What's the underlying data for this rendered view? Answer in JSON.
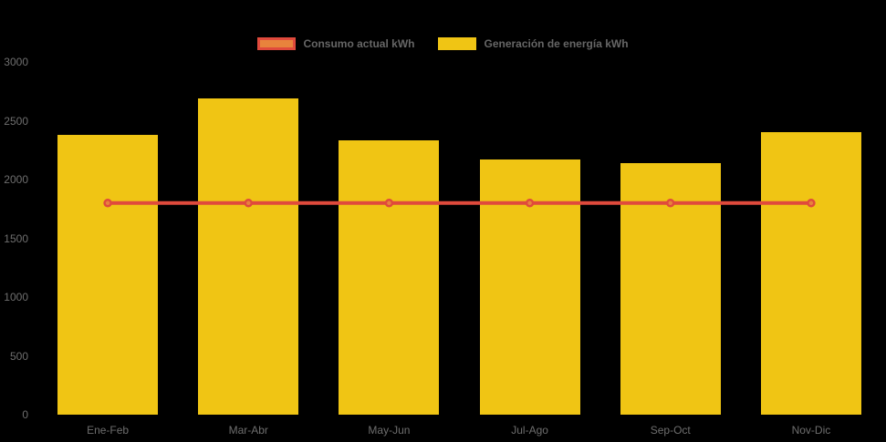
{
  "legend": {
    "items": [
      {
        "label": "Consumo actual kWh",
        "swatch_fill": "#E8833C",
        "swatch_border": "#E04A3C"
      },
      {
        "label": "Generación de energía kWh",
        "swatch_fill": "#F0C514",
        "swatch_border": "#F0C514"
      }
    ]
  },
  "chart_data": {
    "type": "bar+line",
    "categories": [
      "Ene-Feb",
      "Mar-Abr",
      "May-Jun",
      "Jul-Ago",
      "Sep-Oct",
      "Nov-Dic"
    ],
    "series": [
      {
        "name": "Consumo actual kWh",
        "type": "line",
        "values": [
          1800,
          1800,
          1800,
          1800,
          1800,
          1800
        ],
        "line_color": "#E04A3C",
        "marker_fill": "#E8833C",
        "marker_stroke": "#E04A3C"
      },
      {
        "name": "Generación de energía kWh",
        "type": "bar",
        "values": [
          2380,
          2690,
          2330,
          2170,
          2140,
          2400
        ],
        "color": "#F0C514"
      }
    ],
    "ylim": [
      0,
      3000
    ],
    "yticks": [
      0,
      500,
      1000,
      1500,
      2000,
      2500,
      3000
    ],
    "ytick_labels": [
      "0",
      "500",
      "1000",
      "1500",
      "2000",
      "2500",
      "3000"
    ],
    "xlabel": "",
    "ylabel": "",
    "title": "",
    "grid": false,
    "legend_position": "top-center",
    "background_color": "#000000",
    "axis_label_color": "#6E6E6E",
    "legend_label_color": "#666666"
  }
}
